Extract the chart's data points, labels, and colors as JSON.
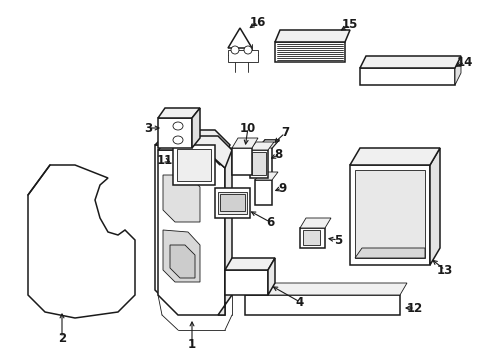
{
  "bg_color": "#ffffff",
  "line_color": "#1a1a1a",
  "figsize": [
    4.9,
    3.6
  ],
  "dpi": 100,
  "label_fontsize": 8.5
}
